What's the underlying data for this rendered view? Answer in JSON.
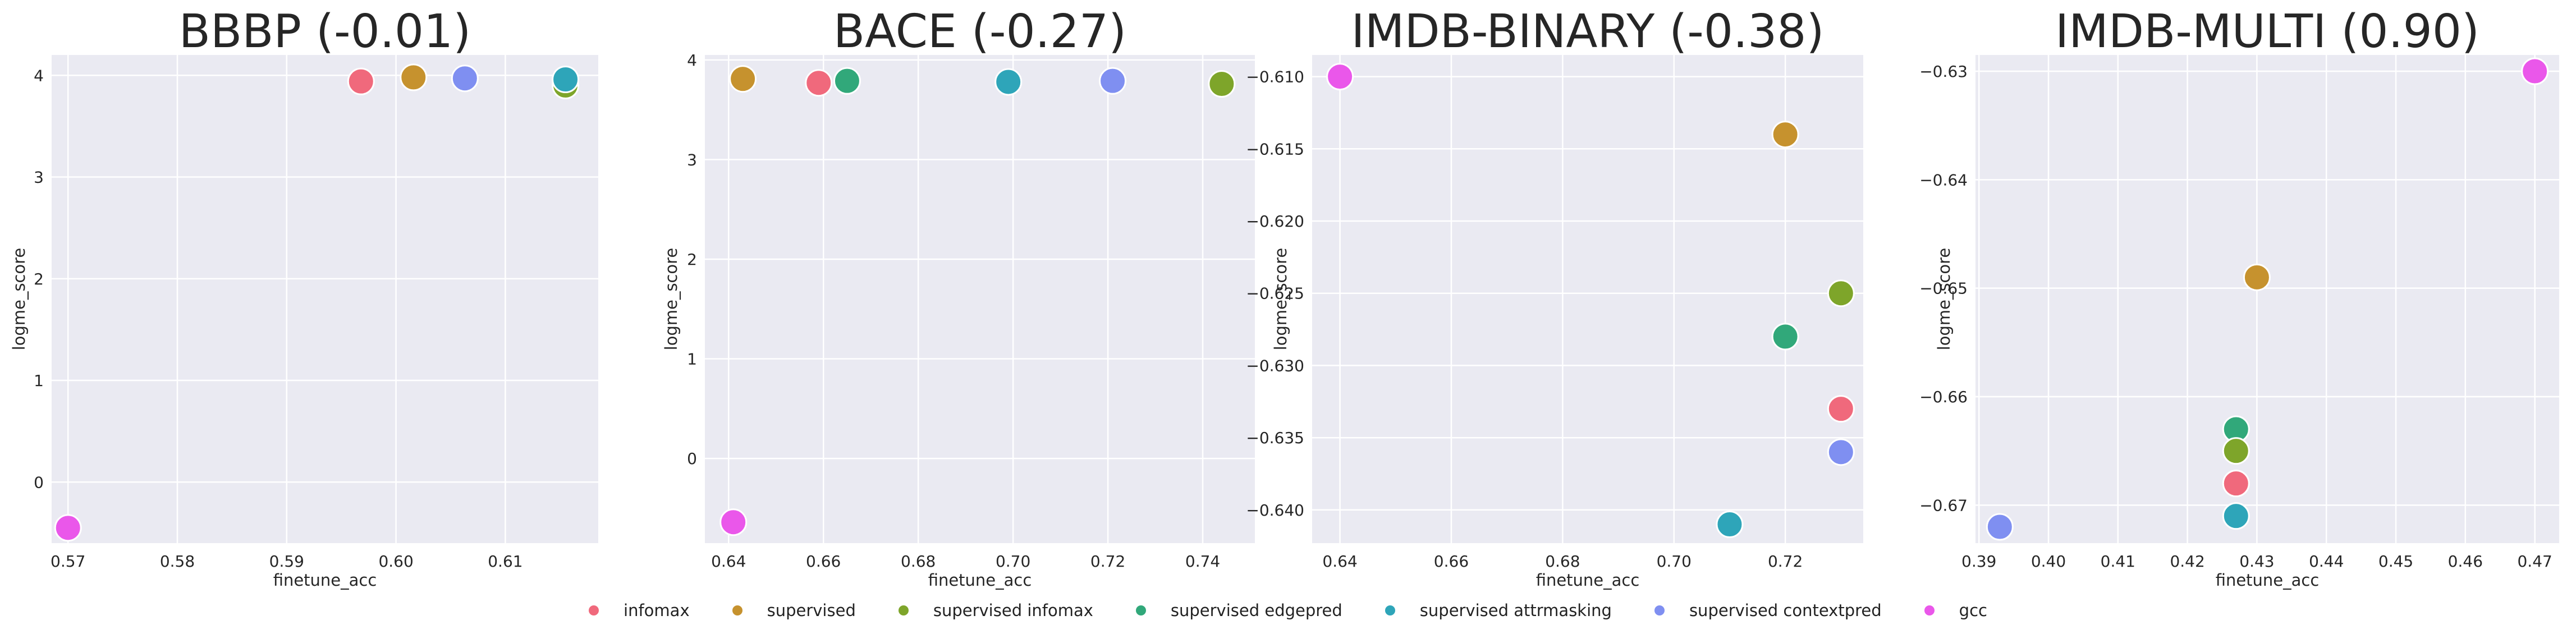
{
  "series_colors": {
    "infomax": "#f0697c",
    "supervised": "#c6922e",
    "supervised infomax": "#7ea52a",
    "supervised edgepred": "#31a87a",
    "supervised attrmasking": "#2ea5b9",
    "supervised contextpred": "#7f8ff1",
    "gcc": "#ea57ea"
  },
  "chart_data": [
    {
      "type": "scatter",
      "title": "BBBP (-0.01)",
      "xlabel": "finetune_acc",
      "ylabel": "logme_score",
      "xlim": [
        0.5685,
        0.6185
      ],
      "ylim": [
        -0.6,
        4.2
      ],
      "xticks": [
        0.57,
        0.58,
        0.59,
        0.6,
        0.61
      ],
      "xtick_labels": [
        "0.57",
        "0.58",
        "0.59",
        "0.60",
        "0.61"
      ],
      "yticks": [
        0,
        1,
        2,
        3,
        4
      ],
      "ytick_labels": [
        "0",
        "1",
        "2",
        "3",
        "4"
      ],
      "points": [
        {
          "series": "infomax",
          "x": 0.5968,
          "y": 3.94
        },
        {
          "series": "supervised",
          "x": 0.6016,
          "y": 3.98
        },
        {
          "series": "supervised contextpred",
          "x": 0.6063,
          "y": 3.97
        },
        {
          "series": "supervised infomax",
          "x": 0.6155,
          "y": 3.9
        },
        {
          "series": "supervised attrmasking",
          "x": 0.6155,
          "y": 3.96
        },
        {
          "series": "gcc",
          "x": 0.57,
          "y": -0.45
        }
      ]
    },
    {
      "type": "scatter",
      "title": "BACE (-0.27)",
      "xlabel": "finetune_acc",
      "ylabel": "logme_score",
      "xlim": [
        0.635,
        0.751
      ],
      "ylim": [
        -0.85,
        4.05
      ],
      "xticks": [
        0.64,
        0.66,
        0.68,
        0.7,
        0.72,
        0.74
      ],
      "xtick_labels": [
        "0.64",
        "0.66",
        "0.68",
        "0.70",
        "0.72",
        "0.74"
      ],
      "yticks": [
        0,
        1,
        2,
        3,
        4
      ],
      "ytick_labels": [
        "0",
        "1",
        "2",
        "3",
        "4"
      ],
      "points": [
        {
          "series": "supervised",
          "x": 0.643,
          "y": 3.81
        },
        {
          "series": "infomax",
          "x": 0.659,
          "y": 3.77
        },
        {
          "series": "supervised edgepred",
          "x": 0.665,
          "y": 3.79
        },
        {
          "series": "supervised attrmasking",
          "x": 0.699,
          "y": 3.78
        },
        {
          "series": "supervised contextpred",
          "x": 0.721,
          "y": 3.79
        },
        {
          "series": "supervised infomax",
          "x": 0.744,
          "y": 3.76
        },
        {
          "series": "gcc",
          "x": 0.641,
          "y": -0.64
        }
      ]
    },
    {
      "type": "scatter",
      "title": "IMDB-BINARY (-0.38)",
      "xlabel": "finetune_acc",
      "ylabel": "logme_score",
      "xlim": [
        0.635,
        0.734
      ],
      "ylim": [
        -0.6423,
        -0.6085
      ],
      "xticks": [
        0.64,
        0.66,
        0.68,
        0.7,
        0.72
      ],
      "xtick_labels": [
        "0.64",
        "0.66",
        "0.68",
        "0.70",
        "0.72"
      ],
      "yticks": [
        -0.61,
        -0.615,
        -0.62,
        -0.625,
        -0.63,
        -0.635,
        -0.64
      ],
      "ytick_labels": [
        "−0.610",
        "−0.615",
        "−0.620",
        "−0.625",
        "−0.630",
        "−0.635",
        "−0.640"
      ],
      "points": [
        {
          "series": "gcc",
          "x": 0.64,
          "y": -0.61
        },
        {
          "series": "supervised",
          "x": 0.72,
          "y": -0.614
        },
        {
          "series": "supervised infomax",
          "x": 0.73,
          "y": -0.625
        },
        {
          "series": "supervised edgepred",
          "x": 0.72,
          "y": -0.628
        },
        {
          "series": "infomax",
          "x": 0.73,
          "y": -0.633
        },
        {
          "series": "supervised contextpred",
          "x": 0.73,
          "y": -0.636
        },
        {
          "series": "supervised attrmasking",
          "x": 0.71,
          "y": -0.641
        }
      ]
    },
    {
      "type": "scatter",
      "title": "IMDB-MULTI (0.90)",
      "xlabel": "finetune_acc",
      "ylabel": "logme_score",
      "xlim": [
        0.3895,
        0.4735
      ],
      "ylim": [
        -0.6735,
        -0.6285
      ],
      "xticks": [
        0.39,
        0.4,
        0.41,
        0.42,
        0.43,
        0.44,
        0.45,
        0.46,
        0.47
      ],
      "xtick_labels": [
        "0.39",
        "0.40",
        "0.41",
        "0.42",
        "0.43",
        "0.44",
        "0.45",
        "0.46",
        "0.47"
      ],
      "yticks": [
        -0.63,
        -0.64,
        -0.65,
        -0.66,
        -0.67
      ],
      "ytick_labels": [
        "−0.63",
        "−0.64",
        "−0.65",
        "−0.66",
        "−0.67"
      ],
      "points": [
        {
          "series": "gcc",
          "x": 0.47,
          "y": -0.63
        },
        {
          "series": "supervised",
          "x": 0.43,
          "y": -0.649
        },
        {
          "series": "supervised edgepred",
          "x": 0.427,
          "y": -0.663
        },
        {
          "series": "supervised infomax",
          "x": 0.427,
          "y": -0.665
        },
        {
          "series": "infomax",
          "x": 0.427,
          "y": -0.668
        },
        {
          "series": "supervised attrmasking",
          "x": 0.427,
          "y": -0.671
        },
        {
          "series": "supervised contextpred",
          "x": 0.393,
          "y": -0.672
        }
      ]
    }
  ],
  "legend": {
    "placement": "bottom-center",
    "items": [
      {
        "label": "infomax",
        "color": "#f0697c"
      },
      {
        "label": "supervised",
        "color": "#c6922e"
      },
      {
        "label": "supervised infomax",
        "color": "#7ea52a"
      },
      {
        "label": "supervised edgepred",
        "color": "#31a87a"
      },
      {
        "label": "supervised attrmasking",
        "color": "#2ea5b9"
      },
      {
        "label": "supervised contextpred",
        "color": "#7f8ff1"
      },
      {
        "label": "gcc",
        "color": "#ea57ea"
      }
    ]
  }
}
